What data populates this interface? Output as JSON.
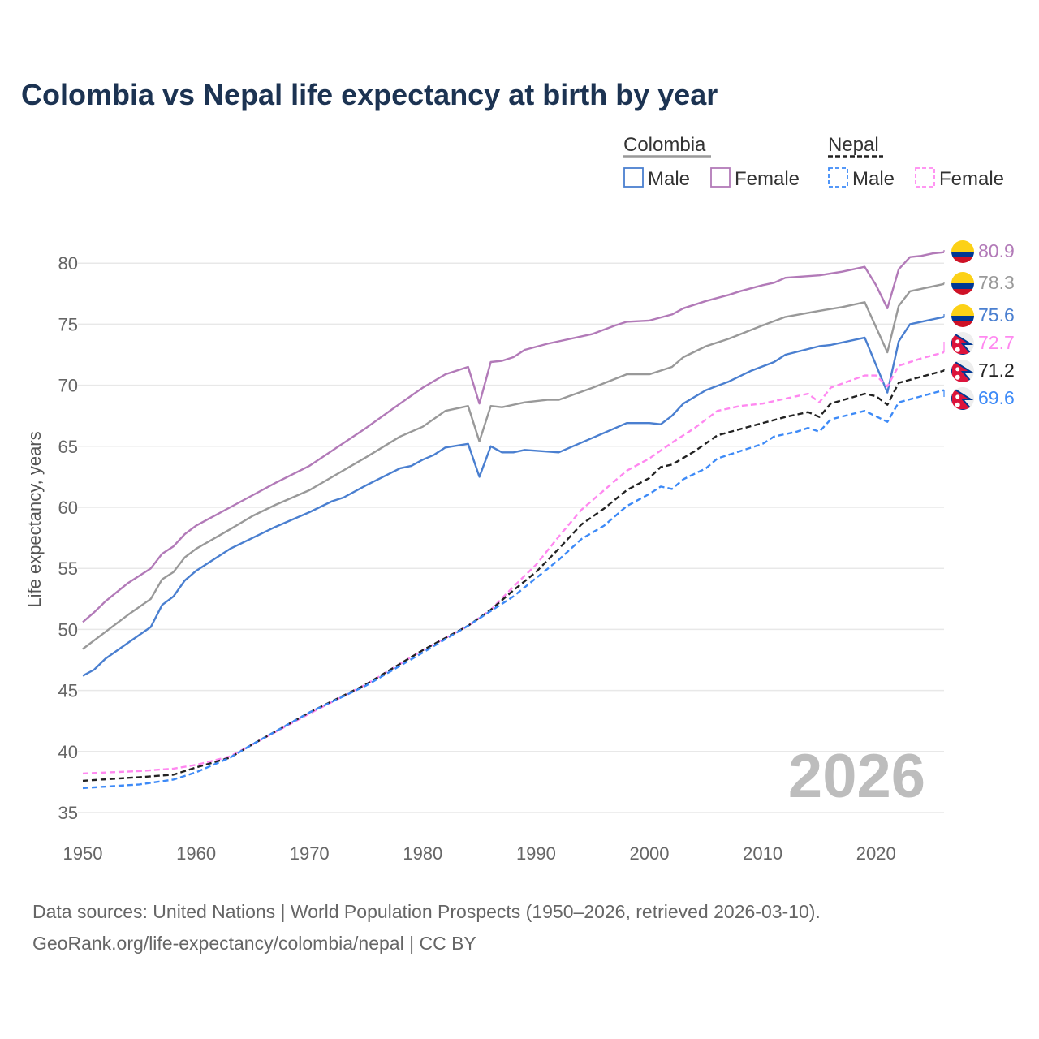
{
  "title": "Colombia vs Nepal life expectancy at birth by year",
  "watermark_year": "2026",
  "footer": {
    "line1": "Data sources: United Nations | World Population Prospects (1950–2026, retrieved 2026-03-10).",
    "line2": "GeoRank.org/life-expectancy/colombia/nepal | CC BY"
  },
  "legend": {
    "groups": [
      {
        "country": "Colombia",
        "underline_color": "#999999",
        "dashed": false,
        "items": [
          {
            "label": "Male",
            "color": "#4a7fd0"
          },
          {
            "label": "Female",
            "color": "#b27ab8"
          }
        ]
      },
      {
        "country": "Nepal",
        "underline_color": "#222222",
        "dashed": true,
        "items": [
          {
            "label": "Male",
            "color": "#3d8af7"
          },
          {
            "label": "Female",
            "color": "#ff88f0"
          }
        ]
      }
    ]
  },
  "chart_data": {
    "type": "line",
    "title": "Colombia vs Nepal life expectancy at birth by year",
    "xlabel": "",
    "ylabel": "Life expectancy, years",
    "xlim": [
      1950,
      2026
    ],
    "ylim": [
      35,
      82
    ],
    "xticks": [
      1950,
      1960,
      1970,
      1980,
      1990,
      2000,
      2010,
      2020
    ],
    "yticks": [
      35,
      40,
      45,
      50,
      55,
      60,
      65,
      70,
      75,
      80
    ],
    "grid": true,
    "legend_position": "top-right",
    "series": [
      {
        "name": "Colombia Female",
        "color": "#b27ab8",
        "dashed": false,
        "flag": "colombia",
        "end_label": "80.9",
        "points": [
          [
            1950,
            50.6
          ],
          [
            1951,
            51.4
          ],
          [
            1952,
            52.3
          ],
          [
            1954,
            53.8
          ],
          [
            1956,
            55.0
          ],
          [
            1957,
            56.2
          ],
          [
            1958,
            56.8
          ],
          [
            1959,
            57.8
          ],
          [
            1960,
            58.5
          ],
          [
            1963,
            60.0
          ],
          [
            1965,
            61.0
          ],
          [
            1967,
            62.0
          ],
          [
            1970,
            63.4
          ],
          [
            1975,
            66.5
          ],
          [
            1978,
            68.5
          ],
          [
            1980,
            69.8
          ],
          [
            1982,
            70.9
          ],
          [
            1984,
            71.5
          ],
          [
            1985,
            68.5
          ],
          [
            1986,
            71.9
          ],
          [
            1987,
            72.0
          ],
          [
            1988,
            72.3
          ],
          [
            1989,
            72.9
          ],
          [
            1991,
            73.4
          ],
          [
            1992,
            73.6
          ],
          [
            1995,
            74.2
          ],
          [
            1997,
            74.9
          ],
          [
            1998,
            75.2
          ],
          [
            2000,
            75.3
          ],
          [
            2002,
            75.8
          ],
          [
            2003,
            76.3
          ],
          [
            2005,
            76.9
          ],
          [
            2007,
            77.4
          ],
          [
            2008,
            77.7
          ],
          [
            2010,
            78.2
          ],
          [
            2011,
            78.4
          ],
          [
            2012,
            78.8
          ],
          [
            2015,
            79.0
          ],
          [
            2017,
            79.3
          ],
          [
            2019,
            79.7
          ],
          [
            2020,
            78.2
          ],
          [
            2021,
            76.3
          ],
          [
            2022,
            79.5
          ],
          [
            2023,
            80.5
          ],
          [
            2024,
            80.6
          ],
          [
            2025,
            80.8
          ],
          [
            2026,
            80.9
          ]
        ]
      },
      {
        "name": "Colombia",
        "color": "#999999",
        "dashed": false,
        "flag": "colombia",
        "end_label": "78.3",
        "points": [
          [
            1950,
            48.4
          ],
          [
            1951,
            49.1
          ],
          [
            1952,
            49.8
          ],
          [
            1954,
            51.2
          ],
          [
            1956,
            52.5
          ],
          [
            1957,
            54.1
          ],
          [
            1958,
            54.7
          ],
          [
            1959,
            55.9
          ],
          [
            1960,
            56.6
          ],
          [
            1963,
            58.2
          ],
          [
            1965,
            59.3
          ],
          [
            1967,
            60.2
          ],
          [
            1970,
            61.4
          ],
          [
            1975,
            64.1
          ],
          [
            1978,
            65.8
          ],
          [
            1980,
            66.6
          ],
          [
            1982,
            67.9
          ],
          [
            1984,
            68.3
          ],
          [
            1985,
            65.4
          ],
          [
            1986,
            68.3
          ],
          [
            1987,
            68.2
          ],
          [
            1989,
            68.6
          ],
          [
            1991,
            68.8
          ],
          [
            1992,
            68.8
          ],
          [
            1995,
            69.8
          ],
          [
            1998,
            70.9
          ],
          [
            2000,
            70.9
          ],
          [
            2002,
            71.5
          ],
          [
            2003,
            72.3
          ],
          [
            2005,
            73.2
          ],
          [
            2007,
            73.8
          ],
          [
            2010,
            74.9
          ],
          [
            2012,
            75.6
          ],
          [
            2015,
            76.1
          ],
          [
            2017,
            76.4
          ],
          [
            2019,
            76.8
          ],
          [
            2021,
            72.7
          ],
          [
            2022,
            76.5
          ],
          [
            2023,
            77.7
          ],
          [
            2026,
            78.3
          ]
        ]
      },
      {
        "name": "Colombia Male",
        "color": "#4a7fd0",
        "dashed": false,
        "flag": "colombia",
        "end_label": "75.6",
        "points": [
          [
            1950,
            46.2
          ],
          [
            1951,
            46.7
          ],
          [
            1952,
            47.6
          ],
          [
            1954,
            48.9
          ],
          [
            1956,
            50.2
          ],
          [
            1957,
            52.0
          ],
          [
            1958,
            52.7
          ],
          [
            1959,
            54.0
          ],
          [
            1960,
            54.8
          ],
          [
            1963,
            56.6
          ],
          [
            1965,
            57.5
          ],
          [
            1967,
            58.4
          ],
          [
            1970,
            59.6
          ],
          [
            1972,
            60.5
          ],
          [
            1973,
            60.8
          ],
          [
            1975,
            61.8
          ],
          [
            1978,
            63.2
          ],
          [
            1979,
            63.4
          ],
          [
            1980,
            63.9
          ],
          [
            1981,
            64.3
          ],
          [
            1982,
            64.9
          ],
          [
            1984,
            65.2
          ],
          [
            1985,
            62.5
          ],
          [
            1986,
            65.0
          ],
          [
            1987,
            64.5
          ],
          [
            1988,
            64.5
          ],
          [
            1989,
            64.7
          ],
          [
            1992,
            64.5
          ],
          [
            1995,
            65.7
          ],
          [
            1998,
            66.9
          ],
          [
            2000,
            66.9
          ],
          [
            2001,
            66.8
          ],
          [
            2002,
            67.5
          ],
          [
            2003,
            68.5
          ],
          [
            2005,
            69.6
          ],
          [
            2007,
            70.3
          ],
          [
            2009,
            71.2
          ],
          [
            2011,
            71.9
          ],
          [
            2012,
            72.5
          ],
          [
            2015,
            73.2
          ],
          [
            2016,
            73.3
          ],
          [
            2019,
            73.9
          ],
          [
            2021,
            69.4
          ],
          [
            2022,
            73.6
          ],
          [
            2023,
            75.0
          ],
          [
            2026,
            75.6
          ]
        ]
      },
      {
        "name": "Nepal Female",
        "color": "#ff88f0",
        "dashed": true,
        "flag": "nepal",
        "end_label": "72.7",
        "points": [
          [
            1950,
            38.2
          ],
          [
            1955,
            38.4
          ],
          [
            1958,
            38.6
          ],
          [
            1960,
            38.9
          ],
          [
            1963,
            39.6
          ],
          [
            1965,
            40.6
          ],
          [
            1970,
            43.1
          ],
          [
            1975,
            45.5
          ],
          [
            1980,
            48.3
          ],
          [
            1984,
            50.3
          ],
          [
            1986,
            51.6
          ],
          [
            1988,
            53.5
          ],
          [
            1990,
            55.3
          ],
          [
            1992,
            57.6
          ],
          [
            1994,
            59.8
          ],
          [
            1996,
            61.4
          ],
          [
            1998,
            63.0
          ],
          [
            2000,
            64.0
          ],
          [
            2002,
            65.3
          ],
          [
            2004,
            66.5
          ],
          [
            2006,
            67.9
          ],
          [
            2008,
            68.3
          ],
          [
            2010,
            68.5
          ],
          [
            2012,
            68.9
          ],
          [
            2014,
            69.3
          ],
          [
            2015,
            68.6
          ],
          [
            2016,
            69.8
          ],
          [
            2019,
            70.8
          ],
          [
            2020,
            70.8
          ],
          [
            2021,
            69.9
          ],
          [
            2022,
            71.6
          ],
          [
            2024,
            72.2
          ],
          [
            2026,
            72.7
          ]
        ]
      },
      {
        "name": "Nepal",
        "color": "#222222",
        "dashed": true,
        "flag": "nepal",
        "end_label": "71.2",
        "points": [
          [
            1950,
            37.6
          ],
          [
            1955,
            37.9
          ],
          [
            1958,
            38.1
          ],
          [
            1960,
            38.7
          ],
          [
            1963,
            39.5
          ],
          [
            1965,
            40.6
          ],
          [
            1970,
            43.2
          ],
          [
            1975,
            45.5
          ],
          [
            1980,
            48.3
          ],
          [
            1984,
            50.3
          ],
          [
            1986,
            51.6
          ],
          [
            1988,
            53.2
          ],
          [
            1990,
            54.7
          ],
          [
            1992,
            56.6
          ],
          [
            1994,
            58.6
          ],
          [
            1996,
            59.9
          ],
          [
            1998,
            61.4
          ],
          [
            2000,
            62.4
          ],
          [
            2001,
            63.3
          ],
          [
            2002,
            63.5
          ],
          [
            2004,
            64.6
          ],
          [
            2006,
            65.9
          ],
          [
            2008,
            66.4
          ],
          [
            2010,
            66.9
          ],
          [
            2012,
            67.4
          ],
          [
            2014,
            67.8
          ],
          [
            2015,
            67.4
          ],
          [
            2016,
            68.5
          ],
          [
            2019,
            69.3
          ],
          [
            2020,
            69.1
          ],
          [
            2021,
            68.4
          ],
          [
            2022,
            70.2
          ],
          [
            2024,
            70.7
          ],
          [
            2026,
            71.2
          ]
        ]
      },
      {
        "name": "Nepal Male",
        "color": "#3d8af7",
        "dashed": true,
        "flag": "nepal",
        "end_label": "69.6",
        "points": [
          [
            1950,
            37.0
          ],
          [
            1955,
            37.3
          ],
          [
            1958,
            37.7
          ],
          [
            1960,
            38.3
          ],
          [
            1963,
            39.5
          ],
          [
            1965,
            40.6
          ],
          [
            1970,
            43.2
          ],
          [
            1975,
            45.4
          ],
          [
            1980,
            48.1
          ],
          [
            1984,
            50.3
          ],
          [
            1986,
            51.5
          ],
          [
            1988,
            52.7
          ],
          [
            1990,
            54.2
          ],
          [
            1992,
            55.7
          ],
          [
            1994,
            57.4
          ],
          [
            1996,
            58.5
          ],
          [
            1998,
            60.1
          ],
          [
            2000,
            61.1
          ],
          [
            2001,
            61.7
          ],
          [
            2002,
            61.5
          ],
          [
            2003,
            62.3
          ],
          [
            2005,
            63.2
          ],
          [
            2006,
            64.0
          ],
          [
            2008,
            64.6
          ],
          [
            2010,
            65.2
          ],
          [
            2011,
            65.8
          ],
          [
            2013,
            66.2
          ],
          [
            2014,
            66.5
          ],
          [
            2015,
            66.2
          ],
          [
            2016,
            67.2
          ],
          [
            2019,
            67.9
          ],
          [
            2021,
            67.0
          ],
          [
            2022,
            68.6
          ],
          [
            2024,
            69.1
          ],
          [
            2026,
            69.6
          ]
        ]
      }
    ]
  }
}
